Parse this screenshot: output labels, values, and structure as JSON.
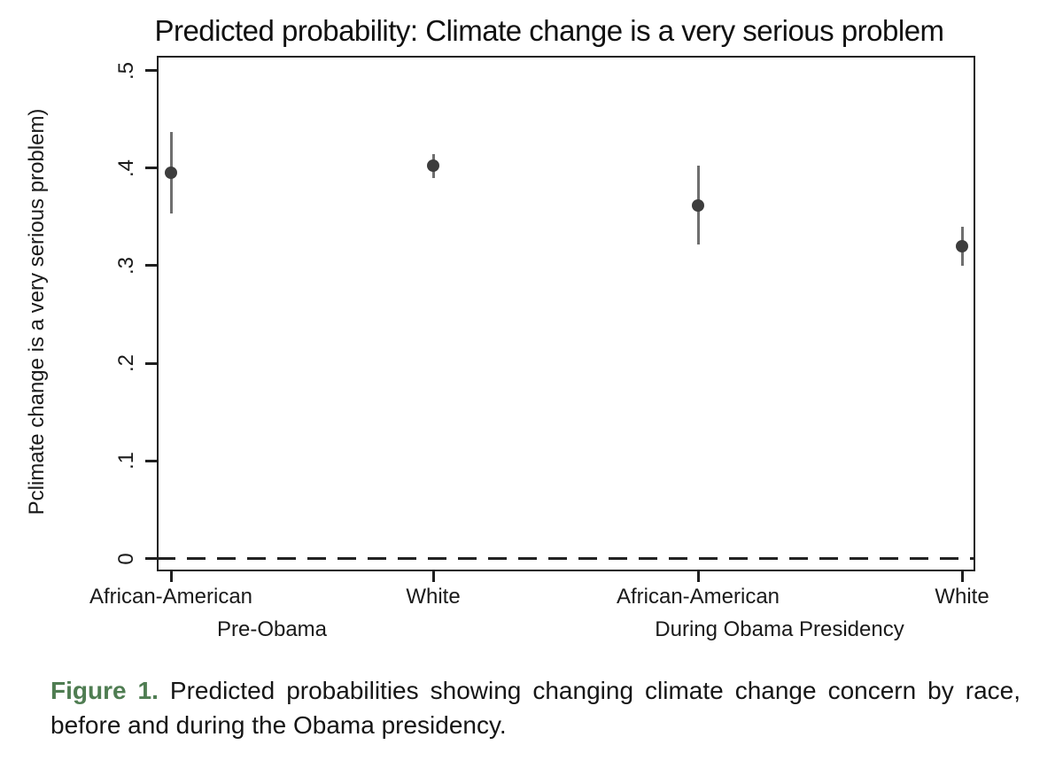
{
  "figure": {
    "caption": {
      "label": "Figure 1.",
      "line1": "Predicted probabilities showing changing climate change concern by race,",
      "line2": "before and during the Obama presidency."
    }
  },
  "chart_data": {
    "type": "scatter",
    "subtype": "point-estimates-with-confidence-intervals",
    "title": "Predicted probability: Climate change is a very serious problem",
    "ylabel": "Pclimate change is a very serious problem)",
    "xlabel": "",
    "ylim": [
      -0.015,
      0.52
    ],
    "grid": false,
    "zero_reference_line": {
      "value": 0,
      "style": "dashed"
    },
    "yticks": [
      {
        "label": "0",
        "value": 0.0
      },
      {
        "label": ".1",
        "value": 0.1
      },
      {
        "label": ".2",
        "value": 0.2
      },
      {
        "label": ".3",
        "value": 0.3
      },
      {
        "label": ".4",
        "value": 0.4
      },
      {
        "label": ".5",
        "value": 0.5
      }
    ],
    "points": [
      {
        "category": "African-American",
        "group": "Pre-Obama",
        "estimate": 0.395,
        "ci_low": 0.353,
        "ci_high": 0.437
      },
      {
        "category": "White",
        "group": "Pre-Obama",
        "estimate": 0.402,
        "ci_low": 0.39,
        "ci_high": 0.414
      },
      {
        "category": "African-American",
        "group": "During Obama Presidency",
        "estimate": 0.362,
        "ci_low": 0.322,
        "ci_high": 0.402
      },
      {
        "category": "White",
        "group": "During Obama Presidency",
        "estimate": 0.32,
        "ci_low": 0.3,
        "ci_high": 0.34
      }
    ],
    "group_labels": [
      "Pre-Obama",
      "During Obama Presidency"
    ],
    "colors": {
      "marker": "#3d3d3d",
      "error_bar": "#6f6f6f",
      "axis": "#1f1f1f",
      "text": "#1a1a1a",
      "caption_label_green": "#4f7d52"
    }
  }
}
